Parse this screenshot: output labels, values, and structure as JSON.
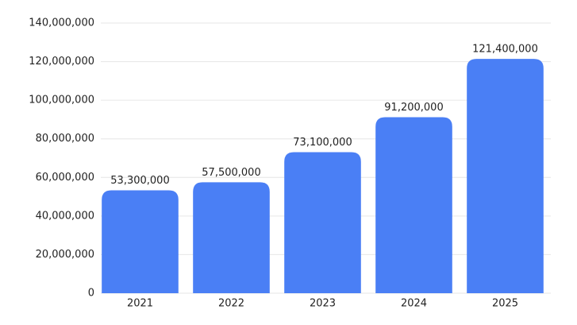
{
  "chart_data": {
    "type": "bar",
    "categories": [
      "2021",
      "2022",
      "2023",
      "2024",
      "2025"
    ],
    "values": [
      53300000,
      57500000,
      73100000,
      91200000,
      121400000
    ],
    "value_labels": [
      "53,300,000",
      "57,500,000",
      "73,100,000",
      "91,200,000",
      "121,400,000"
    ],
    "color": "#4a7ff5",
    "ylim": [
      0,
      140000000
    ],
    "yticks": [
      0,
      {
        "value": 20000000,
        "label": "20,000,000"
      },
      {
        "value": 40000000,
        "label": "40,000,000"
      },
      {
        "value": 60000000,
        "label": "60,000,000"
      },
      {
        "value": 80000000,
        "label": "80,000,000"
      },
      {
        "value": 100000000,
        "label": "100,000,000"
      },
      {
        "value": 120000000,
        "label": "120,000,000"
      },
      {
        "value": 140000000,
        "label": "140,000,000"
      }
    ],
    "grid": true
  }
}
